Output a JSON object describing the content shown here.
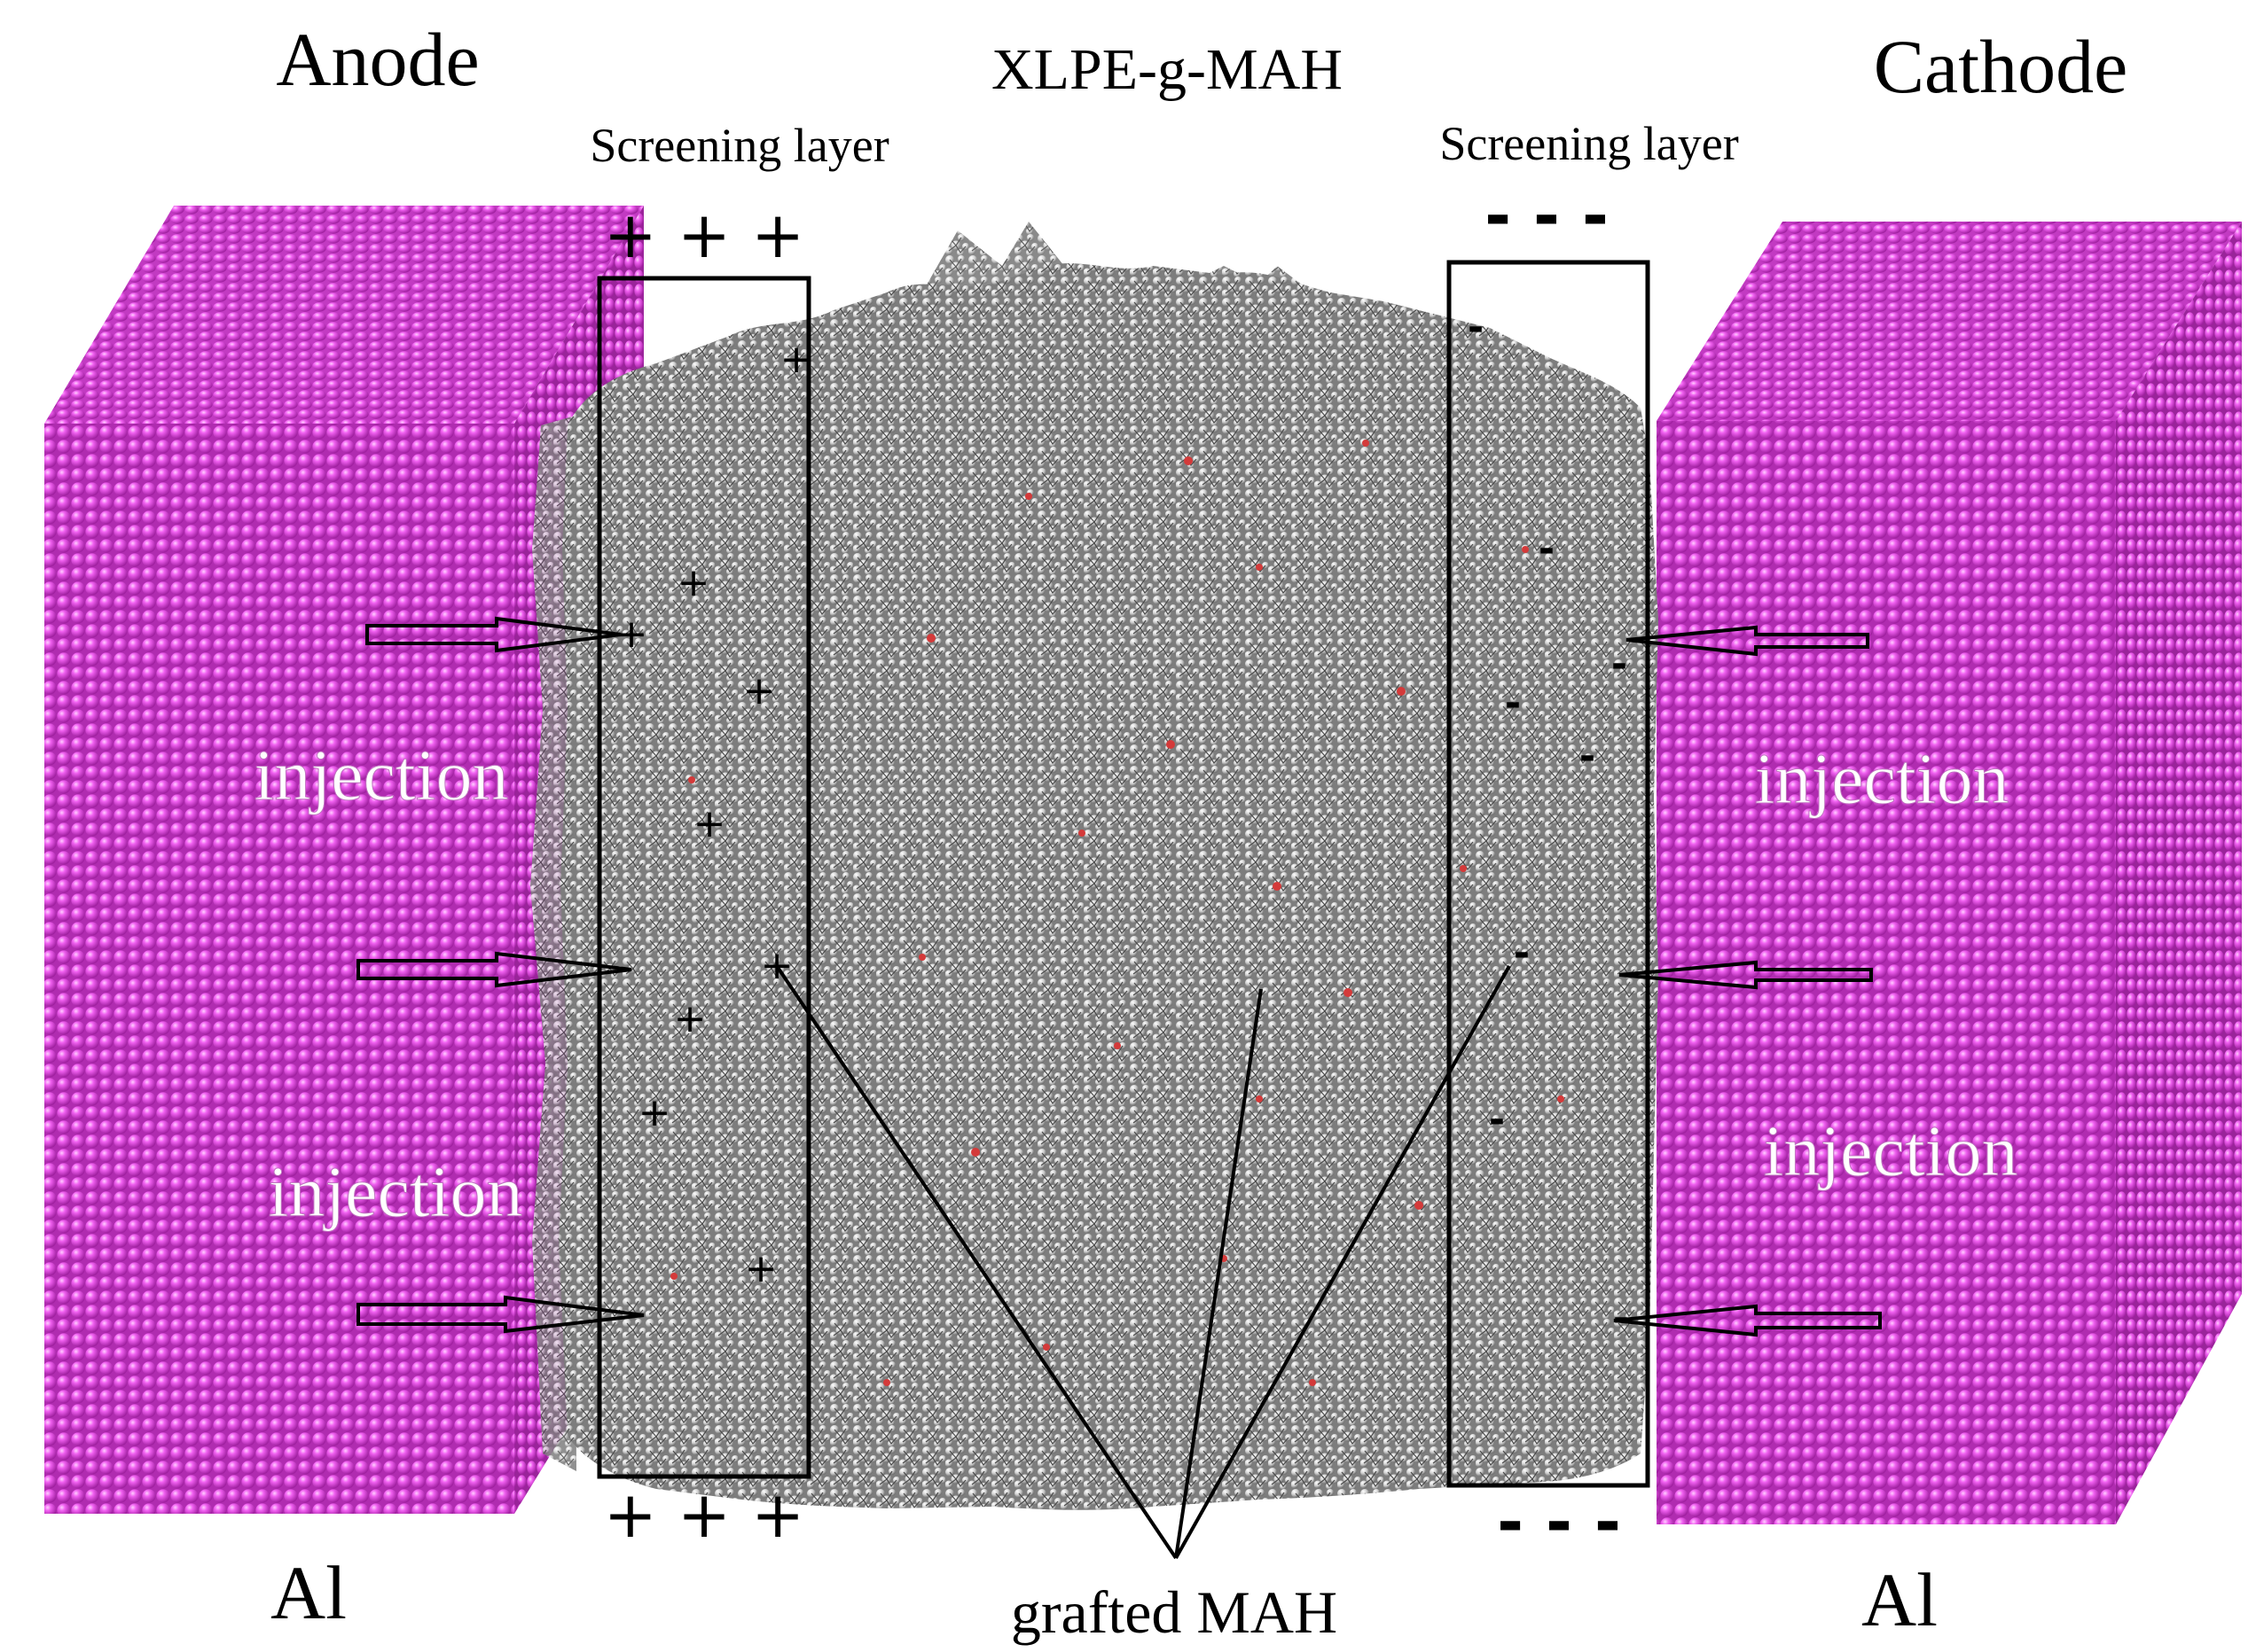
{
  "labels": {
    "anode": "Anode",
    "cathode": "Cathode",
    "material": "XLPE-g-MAH",
    "screening_left": "Screening layer",
    "screening_right": "Screening layer",
    "injection_left_upper": "injection",
    "injection_left_lower": "injection",
    "injection_right_upper": "injection",
    "injection_right_lower": "injection",
    "electrode_left": "Al",
    "electrode_right": "Al",
    "grafted": "grafted MAH"
  },
  "charges": {
    "top_left": "+ + +",
    "bottom_left": "+ + +",
    "top_right": "- - -",
    "bottom_right": "- - -",
    "plus": "+",
    "minus": "-"
  },
  "colors": {
    "electrode": "#e040e0",
    "electrode_dark": "#8a1f8a",
    "polymer": "#9a9a9a",
    "oxygen": "#d43a3a",
    "frame": "#000000"
  }
}
